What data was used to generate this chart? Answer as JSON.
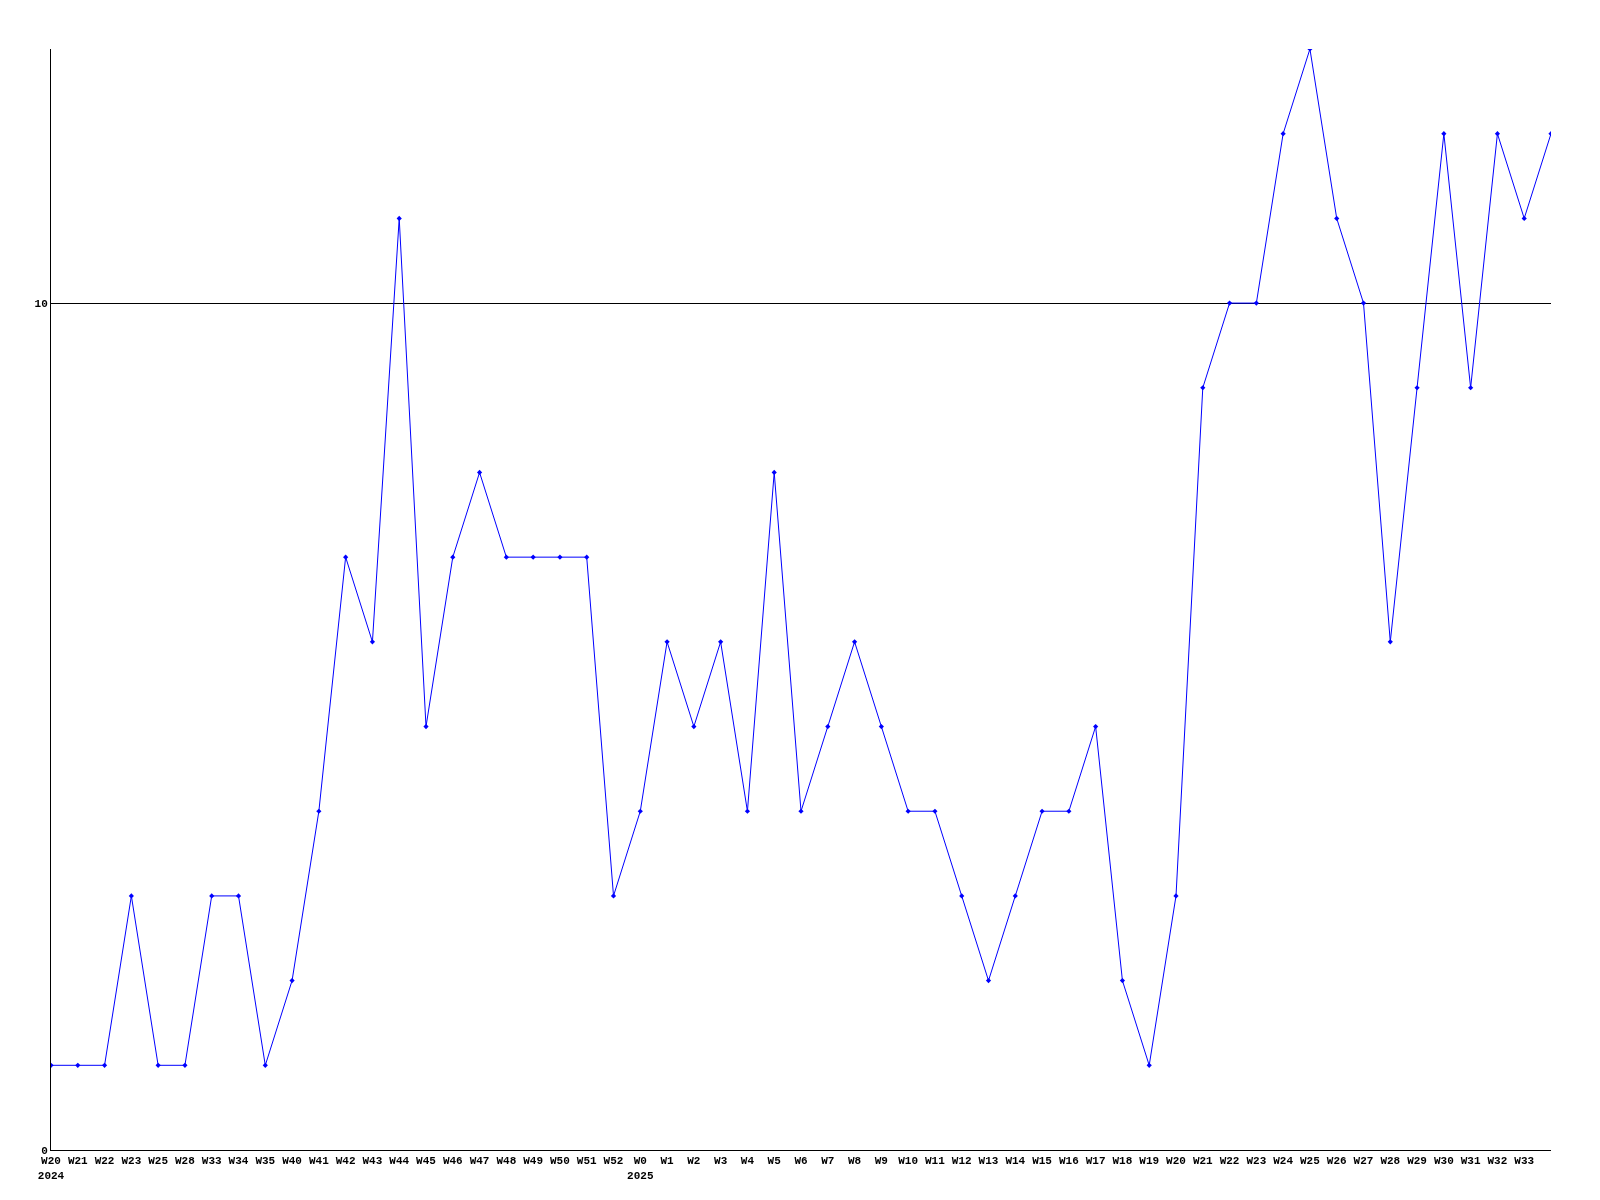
{
  "chart_data": {
    "type": "line",
    "categories": [
      "W20\n2024",
      "W21",
      "W22",
      "W23",
      "W25",
      "W28",
      "W33",
      "W34",
      "W35",
      "W40",
      "W41",
      "W42",
      "W43",
      "W44",
      "W45",
      "W46",
      "W47",
      "W48",
      "W49",
      "W50",
      "W51",
      "W52",
      "W0\n2025",
      "W1",
      "W2",
      "W3",
      "W4",
      "W5",
      "W6",
      "W7",
      "W8",
      "W9",
      "W10",
      "W11",
      "W12",
      "W13",
      "W14",
      "W15",
      "W16",
      "W17",
      "W18",
      "W19",
      "W20",
      "W21",
      "W22",
      "W23",
      "W24",
      "W25",
      "W26",
      "W27",
      "W28",
      "W29",
      "W30",
      "W31",
      "W32",
      "W33",
      null
    ],
    "series": [
      {
        "color": "#0000ff",
        "values": [
          1,
          1,
          1,
          3,
          1,
          1,
          3,
          3,
          1,
          2,
          4,
          7,
          6,
          11,
          5,
          7,
          8,
          7,
          7,
          7,
          7,
          3,
          4,
          6,
          5,
          6,
          4,
          8,
          4,
          5,
          6,
          5,
          4,
          4,
          3,
          2,
          3,
          4,
          4,
          5,
          2,
          1,
          3,
          9,
          10,
          10,
          12,
          13,
          11,
          10,
          6,
          9,
          12,
          9,
          12,
          11,
          12
        ]
      }
    ],
    "ylim": [
      0,
      13
    ],
    "yticks": [
      0,
      10
    ],
    "grid": "y",
    "marker": "diamond",
    "line_style": "solid",
    "legend": false
  }
}
